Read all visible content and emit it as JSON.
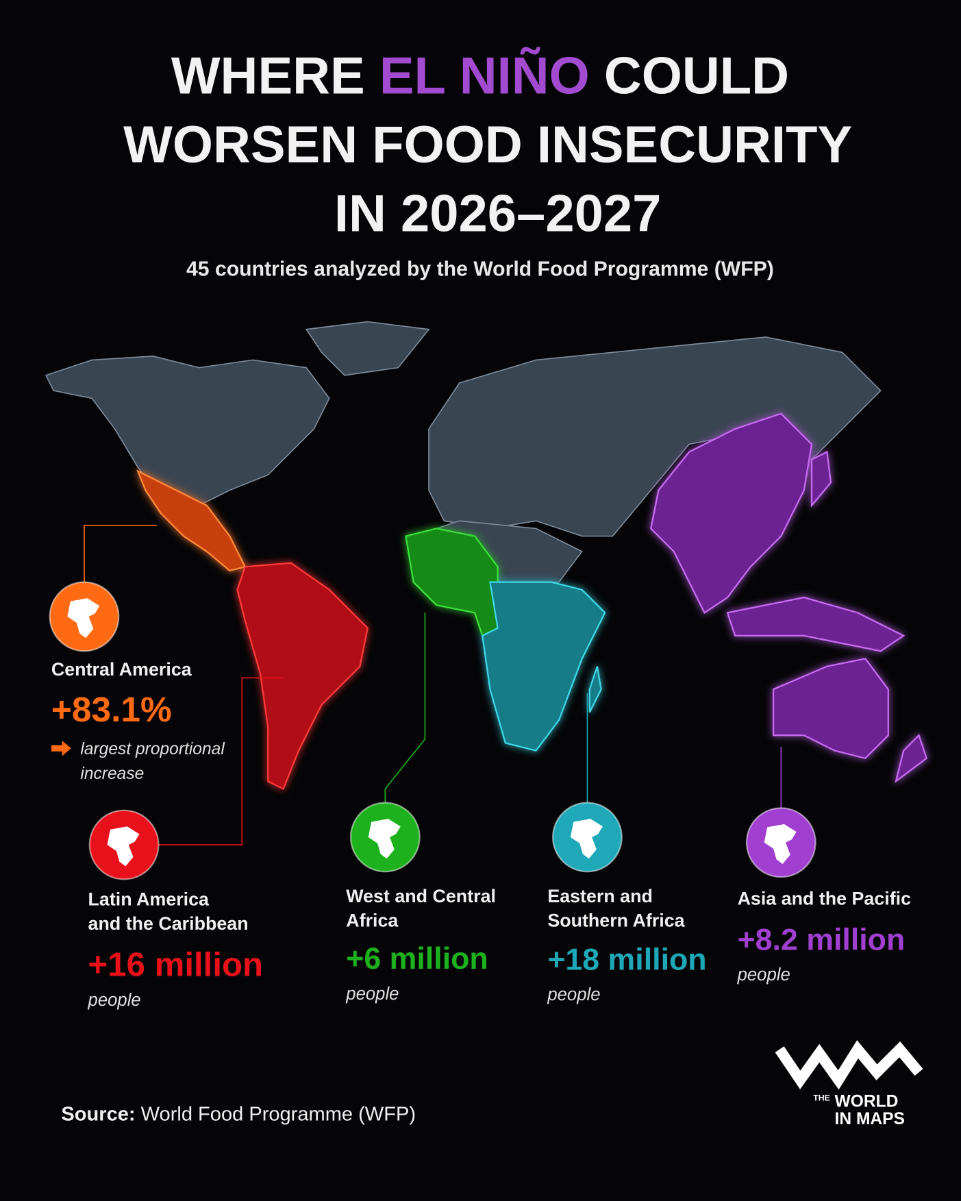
{
  "header": {
    "title_line1": [
      "WHERE",
      "EL NIÑO",
      "COULD"
    ],
    "title_line2": "WORSEN FOOD INSECURITY",
    "title_line3": "IN 2026–2027",
    "subtitle": "45 countries analyzed by the World Food Programme (WFP)"
  },
  "regions": [
    {
      "name_lines": [
        "Central America"
      ],
      "value": "+83.1%",
      "note_lines": [
        "largest proportional",
        "increase"
      ],
      "color": "#ff6a13"
    },
    {
      "name_lines": [
        "Latin America",
        "and the Caribbean"
      ],
      "value": "+16 million",
      "unit": "people",
      "color": "#e8101a"
    },
    {
      "name_lines": [
        "West and Central",
        "Africa"
      ],
      "value": "+6 million",
      "unit": "people",
      "color": "#1db21d"
    },
    {
      "name_lines": [
        "Eastern and",
        "Southern Africa"
      ],
      "value": "+18 million",
      "unit": "people",
      "color": "#1fa9b8"
    },
    {
      "name_lines": [
        "Asia and the Pacific"
      ],
      "value": "+8.2 million",
      "unit": "people",
      "color": "#a03fd0"
    }
  ],
  "source": {
    "label": "Source:",
    "text": "World Food Programme (WFP)"
  },
  "logo": {
    "the": "THE",
    "world": "WORLD",
    "maps": "IN MAPS"
  }
}
